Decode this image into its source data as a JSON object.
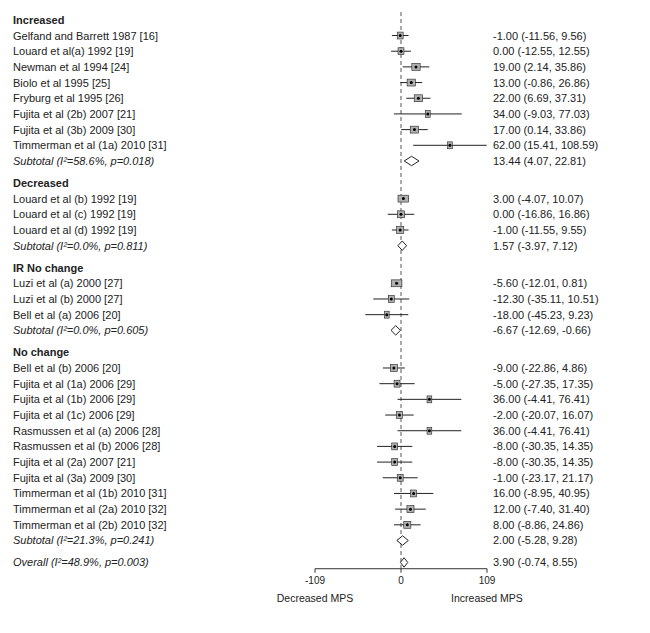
{
  "chart_data": {
    "type": "forest",
    "groups": [
      {
        "header": "Increased",
        "studies": [
          {
            "label": "Gelfand and Barrett 1987 [16]",
            "mean": -1.0,
            "ci_low": -11.56,
            "ci_high": 9.56,
            "weight": 2.5,
            "ci_str": "-1.00 (-11.56, 9.56)"
          },
          {
            "label": "Louard et al(a) 1992 [19]",
            "mean": 0.0,
            "ci_low": -12.55,
            "ci_high": 12.55,
            "weight": 2.5,
            "ci_str": "0.00 (-12.55, 12.55)"
          },
          {
            "label": "Newman et al 1994 [24]",
            "mean": 19.0,
            "ci_low": 2.14,
            "ci_high": 35.86,
            "weight": 3.5,
            "ci_str": "19.00 (2.14, 35.86)"
          },
          {
            "label": "Biolo et al 1995 [25]",
            "mean": 13.0,
            "ci_low": -0.86,
            "ci_high": 26.86,
            "weight": 3.5,
            "ci_str": "13.00 (-0.86, 26.86)"
          },
          {
            "label": "Fryburg et al 1995 [26]",
            "mean": 22.0,
            "ci_low": 6.69,
            "ci_high": 37.31,
            "weight": 3.5,
            "ci_str": "22.00 (6.69, 37.31)"
          },
          {
            "label": "Fujita et al (2b) 2007 [21]",
            "mean": 34.0,
            "ci_low": -9.03,
            "ci_high": 77.03,
            "weight": 2.0,
            "ci_str": "34.00 (-9.03, 77.03)"
          },
          {
            "label": "Fujita et al (3b) 2009 [30]",
            "mean": 17.0,
            "ci_low": 0.14,
            "ci_high": 33.86,
            "weight": 3.5,
            "ci_str": "17.00 (0.14, 33.86)"
          },
          {
            "label": "Timmerman et al (1a) 2010 [31]",
            "mean": 62.0,
            "ci_low": 15.41,
            "ci_high": 108.59,
            "weight": 2.0,
            "ci_str": "62.00 (15.41, 108.59)"
          },
          {
            "label": "Subtotal  (I²=58.6%, p=0.018)",
            "mean": 13.44,
            "ci_low": 4.07,
            "ci_high": 22.81,
            "is_subtotal": true,
            "ci_str": "13.44 (4.07, 22.81)"
          }
        ]
      },
      {
        "header": "Decreased",
        "studies": [
          {
            "label": "Louard et al (b) 1992 [19]",
            "mean": 3.0,
            "ci_low": -4.07,
            "ci_high": 10.07,
            "weight": 4.5,
            "ci_str": "3.00 (-4.07, 10.07)"
          },
          {
            "label": "Louard et al (c) 1992 [19]",
            "mean": 0.0,
            "ci_low": -16.86,
            "ci_high": 16.86,
            "weight": 3.0,
            "ci_str": "0.00 (-16.86, 16.86)"
          },
          {
            "label": "Louard et al (d) 1992 [19]",
            "mean": -1.0,
            "ci_low": -11.55,
            "ci_high": 9.55,
            "weight": 3.0,
            "ci_str": "-1.00 (-11.55, 9.55)"
          },
          {
            "label": "Subtotal  (I²=0.0%, p=0.811)",
            "mean": 1.57,
            "ci_low": -3.97,
            "ci_high": 7.12,
            "is_subtotal": true,
            "ci_str": "1.57 (-3.97, 7.12)"
          }
        ]
      },
      {
        "header": "IR No change",
        "studies": [
          {
            "label": "Luzi et al (a) 2000 [27]",
            "mean": -5.6,
            "ci_low": -12.01,
            "ci_high": 0.81,
            "weight": 4.5,
            "ci_str": "-5.60 (-12.01, 0.81)"
          },
          {
            "label": "Luzi et al (b) 2000 [27]",
            "mean": -12.3,
            "ci_low": -35.11,
            "ci_high": 10.51,
            "weight": 2.5,
            "ci_str": "-12.30 (-35.11, 10.51)"
          },
          {
            "label": "Bell et al (a) 2006 [20]",
            "mean": -18.0,
            "ci_low": -45.23,
            "ci_high": 9.23,
            "weight": 2.0,
            "ci_str": "-18.00 (-45.23, 9.23)"
          },
          {
            "label": "Subtotal  (I²=0.0%, p=0.605)",
            "mean": -6.67,
            "ci_low": -12.69,
            "ci_high": -0.66,
            "is_subtotal": true,
            "ci_str": "-6.67 (-12.69, -0.66)"
          }
        ]
      },
      {
        "header": "No change",
        "studies": [
          {
            "label": "Bell et al (b) 2006 [20]",
            "mean": -9.0,
            "ci_low": -22.86,
            "ci_high": 4.86,
            "weight": 3.0,
            "ci_str": "-9.00 (-22.86, 4.86)"
          },
          {
            "label": "Fujita et al (1a) 2006 [29]",
            "mean": -5.0,
            "ci_low": -27.35,
            "ci_high": 17.35,
            "weight": 2.5,
            "ci_str": "-5.00 (-27.35, 17.35)"
          },
          {
            "label": "Fujita et al (1b) 2006 [29]",
            "mean": 36.0,
            "ci_low": -4.41,
            "ci_high": 76.41,
            "weight": 2.0,
            "ci_str": "36.00 (-4.41, 76.41)"
          },
          {
            "label": "Fujita et al (1c) 2006 [29]",
            "mean": -2.0,
            "ci_low": -20.07,
            "ci_high": 16.07,
            "weight": 2.5,
            "ci_str": "-2.00 (-20.07, 16.07)"
          },
          {
            "label": "Rasmussen et al (a) 2006 [28]",
            "mean": 36.0,
            "ci_low": -4.41,
            "ci_high": 76.41,
            "weight": 2.0,
            "ci_str": "36.00 (-4.41, 76.41)"
          },
          {
            "label": "Rasmussen et al (b) 2006 [28]",
            "mean": -8.0,
            "ci_low": -30.35,
            "ci_high": 14.35,
            "weight": 2.5,
            "ci_str": "-8.00 (-30.35, 14.35)"
          },
          {
            "label": "Fujita et al (2a) 2007 [21]",
            "mean": -8.0,
            "ci_low": -30.35,
            "ci_high": 14.35,
            "weight": 2.5,
            "ci_str": "-8.00 (-30.35, 14.35)"
          },
          {
            "label": "Fujita et al (3a) 2009 [30]",
            "mean": -1.0,
            "ci_low": -23.17,
            "ci_high": 21.17,
            "weight": 2.5,
            "ci_str": "-1.00 (-23.17, 21.17)"
          },
          {
            "label": "Timmerman et al (1b) 2010 [31]",
            "mean": 16.0,
            "ci_low": -8.95,
            "ci_high": 40.95,
            "weight": 2.5,
            "ci_str": "16.00 (-8.95, 40.95)"
          },
          {
            "label": "Timmerman et al (2a) 2010 [32]",
            "mean": 12.0,
            "ci_low": -7.4,
            "ci_high": 31.4,
            "weight": 3.0,
            "ci_str": "12.00 (-7.40, 31.40)"
          },
          {
            "label": "Timmerman et al (2b) 2010 [32]",
            "mean": 8.0,
            "ci_low": -8.86,
            "ci_high": 24.86,
            "weight": 3.0,
            "ci_str": "8.00 (-8.86, 24.86)"
          },
          {
            "label": "Subtotal  (I²=21.3%, p=0.241)",
            "mean": 2.0,
            "ci_low": -5.28,
            "ci_high": 9.28,
            "is_subtotal": true,
            "ci_str": "2.00 (-5.28, 9.28)"
          }
        ]
      }
    ],
    "overall": {
      "label": "Overall  (I²=48.9%, p=0.003)",
      "mean": 3.9,
      "ci_low": -0.74,
      "ci_high": 8.55,
      "ci_str": "3.90 (-0.74, 8.55)"
    },
    "reference_line": 0,
    "xlim": [
      -109,
      109
    ],
    "xticks": [
      -109,
      0,
      109
    ],
    "annotations": [
      {
        "text": "Decreased MPS",
        "x": -109
      },
      {
        "text": "Increased MPS",
        "x": 109
      }
    ],
    "color": "#b0b0b0"
  }
}
